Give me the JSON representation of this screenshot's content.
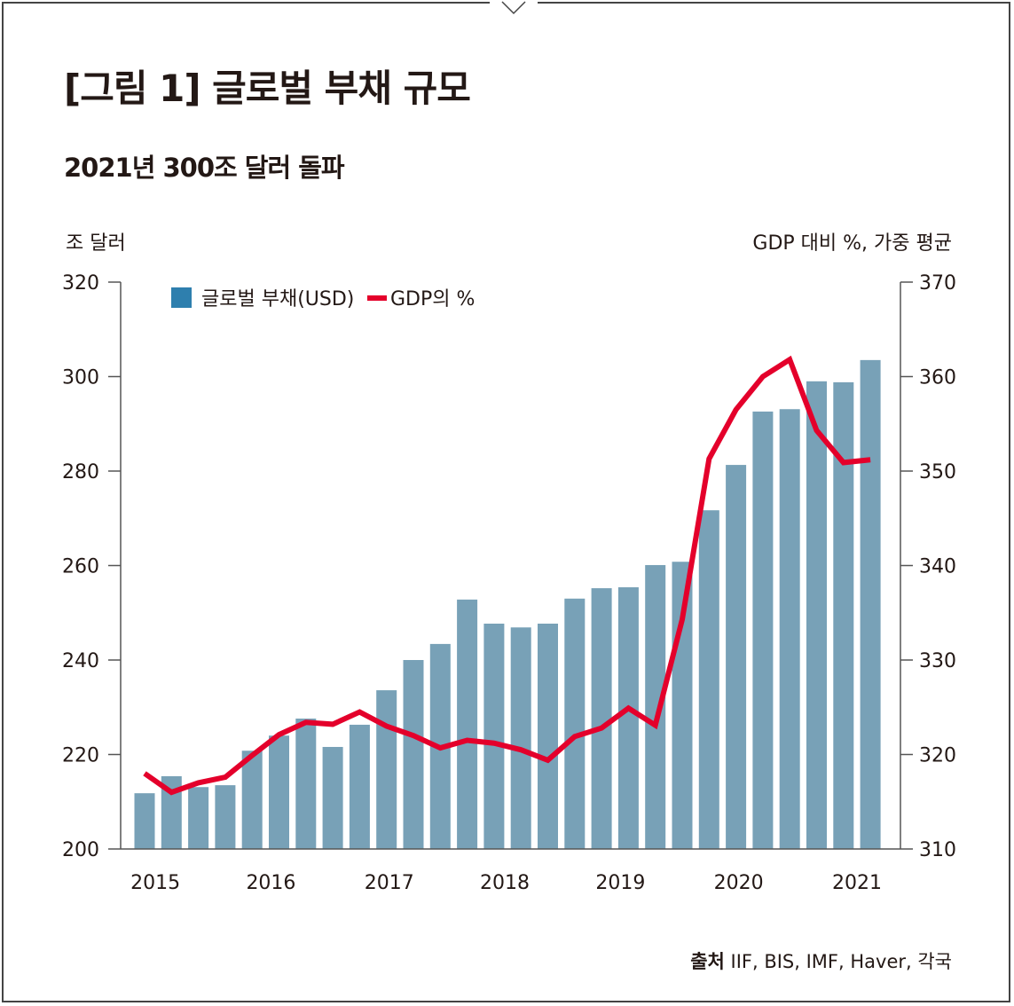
{
  "title": "[그림 1] 글로벌 부채 규모",
  "subtitle": "2021년 300조 달러 돌파",
  "left_unit": "조 달러",
  "right_unit": "GDP 대비 %,  가중 평균",
  "source_label": "출처",
  "source_text": "IIF, BIS, IMF, Haver, 각국",
  "chart_data": {
    "type": "bar+line",
    "xlabel": "",
    "ylabel": "조 달러",
    "y2label": "GDP 대비 %,  가중 평균",
    "ylim": [
      200,
      320
    ],
    "y2lim": [
      310,
      370
    ],
    "yticks": [
      200,
      220,
      240,
      260,
      280,
      300,
      320
    ],
    "y2ticks": [
      310,
      320,
      330,
      340,
      350,
      360,
      370
    ],
    "xtick_labels": [
      "2015",
      "2016",
      "2017",
      "2018",
      "2019",
      "2020",
      "2021"
    ],
    "xtick_bar_index": [
      0.5,
      4.8,
      9.2,
      13.5,
      17.8,
      22.2,
      26.6
    ],
    "legend_position": "top-left",
    "grid": false,
    "series": [
      {
        "name": "글로벌 부채(USD)",
        "type": "bar",
        "axis": "left",
        "color": "#78a1b7",
        "legend_color": "#2e7fae",
        "values": [
          211.8,
          215.4,
          213.1,
          213.5,
          220.8,
          224.0,
          227.6,
          221.6,
          226.3,
          233.6,
          240.0,
          243.4,
          252.8,
          247.7,
          246.9,
          247.7,
          253.0,
          255.2,
          255.4,
          260.1,
          260.8,
          271.7,
          281.3,
          292.6,
          293.1,
          299.0,
          298.8,
          303.5
        ]
      },
      {
        "name": "GDP의 %",
        "type": "line",
        "axis": "right",
        "color": "#e4002b",
        "values": [
          318.0,
          316.0,
          317.0,
          317.6,
          319.9,
          322.1,
          323.4,
          323.2,
          324.5,
          323.0,
          322.0,
          320.7,
          321.5,
          321.2,
          320.5,
          319.4,
          321.9,
          322.8,
          324.9,
          323.1,
          334.3,
          351.3,
          356.5,
          360.0,
          361.8,
          354.3,
          350.9,
          351.2
        ]
      }
    ]
  }
}
